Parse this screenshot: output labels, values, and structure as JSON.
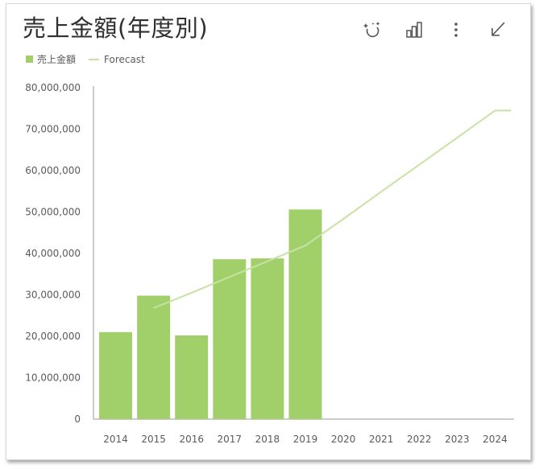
{
  "header": {
    "title": "売上金額(年度別)"
  },
  "toolbar": [
    {
      "name": "insights-icon"
    },
    {
      "name": "chart-type-icon"
    },
    {
      "name": "more-options-icon"
    },
    {
      "name": "collapse-arrow-icon"
    }
  ],
  "chart_data": {
    "type": "bar",
    "title": "売上金額(年度別)",
    "xlabel": "",
    "ylabel": "",
    "ylim": [
      0,
      80000000
    ],
    "yticks": [
      0,
      10000000,
      20000000,
      30000000,
      40000000,
      50000000,
      60000000,
      70000000,
      80000000
    ],
    "ytick_labels": [
      "0",
      "10,000,000",
      "20,000,000",
      "30,000,000",
      "40,000,000",
      "50,000,000",
      "60,000,000",
      "70,000,000",
      "80,000,000"
    ],
    "categories": [
      "2014",
      "2015",
      "2016",
      "2017",
      "2018",
      "2019",
      "2020",
      "2021",
      "2022",
      "2023",
      "2024"
    ],
    "grid": false,
    "legend_position": "top-left",
    "series": [
      {
        "name": "売上金額",
        "kind": "bar",
        "color": "#a1cf69",
        "values": [
          21000000,
          29800000,
          20200000,
          38600000,
          38800000,
          50600000,
          null,
          null,
          null,
          null,
          null
        ]
      },
      {
        "name": "Forecast",
        "kind": "line",
        "color": "#c6e3a3",
        "values": [
          null,
          26800000,
          30500000,
          34300000,
          38100000,
          41900000,
          48300000,
          54900000,
          61400000,
          67900000,
          74500000
        ]
      }
    ]
  }
}
